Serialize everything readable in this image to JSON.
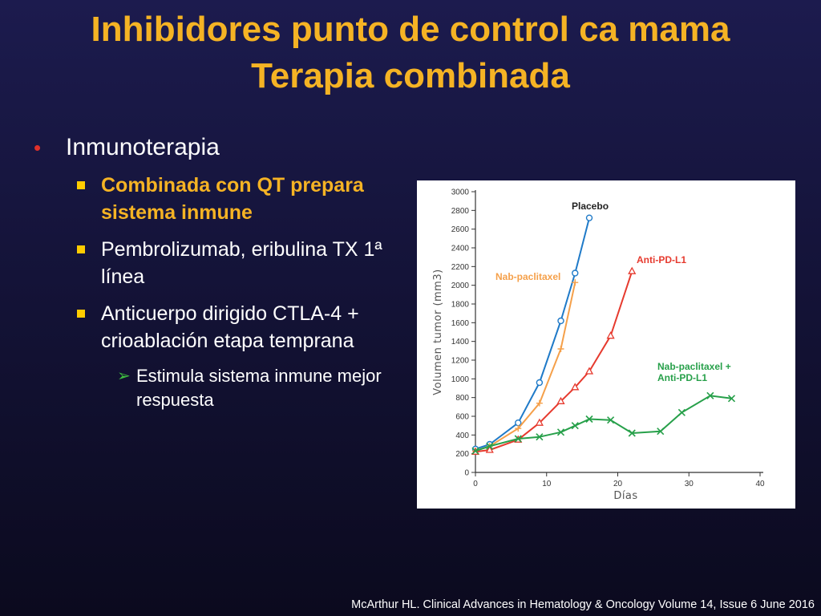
{
  "slide": {
    "title_line1": "Inhibidores punto de control ca mama",
    "title_line2": "Terapia combinada",
    "bullet1": "Inmunoterapia",
    "sub1": "Combinada con QT prepara sistema inmune",
    "sub2": "Pembrolizumab,  eribulina TX 1ª línea",
    "sub3": "Anticuerpo dirigido CTLA-4 + crioablación etapa temprana",
    "subsub1": "Estimula sistema inmune mejor respuesta",
    "citation": "McArthur HL. Clinical Advances in Hematology & Oncology Volume 14, Issue 6 June 2016",
    "colors": {
      "title": "#f5b324",
      "bullet_dot": "#e0302a",
      "square_bullet": "#ffcc00",
      "arrow_bullet": "#3fbf3f"
    },
    "icons": {
      "level1": "round-bullet-icon",
      "level2": "square-bullet-icon",
      "level3": "arrow-bullet-icon"
    }
  },
  "chart_data": {
    "type": "line",
    "xlabel": "Días",
    "ylabel": "Volumen tumor (mm3)",
    "xlim": [
      0,
      40
    ],
    "ylim": [
      0,
      3000
    ],
    "xticks": [
      0,
      10,
      20,
      30,
      40
    ],
    "yticks": [
      0,
      200,
      400,
      600,
      800,
      1000,
      1200,
      1400,
      1600,
      1800,
      2000,
      2200,
      2400,
      2600,
      2800,
      3000
    ],
    "grid": false,
    "series": [
      {
        "name": "Placebo",
        "label_lines": [
          "Placebo"
        ],
        "color": "#1f7ac8",
        "marker": "circle",
        "x": [
          0,
          2,
          6,
          9,
          12,
          14,
          16
        ],
        "y": [
          250,
          300,
          530,
          960,
          1620,
          2130,
          2720
        ]
      },
      {
        "name": "Nab-paclitaxel",
        "label_lines": [
          "Nab-paclitaxel"
        ],
        "color": "#f5a04a",
        "marker": "plus",
        "x": [
          0,
          2,
          6,
          9,
          12,
          14
        ],
        "y": [
          230,
          280,
          470,
          740,
          1320,
          2030
        ]
      },
      {
        "name": "Anti-PD-L1",
        "label_lines": [
          "Anti-PD-L1"
        ],
        "color": "#e63a2e",
        "marker": "triangle",
        "x": [
          0,
          2,
          6,
          9,
          12,
          14,
          16,
          19,
          22
        ],
        "y": [
          220,
          240,
          350,
          530,
          760,
          910,
          1080,
          1460,
          2150
        ]
      },
      {
        "name": "Nab-paclitaxel + Anti-PD-L1",
        "label_lines": [
          "Nab-paclitaxel +",
          "Anti-PD-L1"
        ],
        "color": "#27a04a",
        "marker": "x",
        "x": [
          0,
          2,
          6,
          9,
          12,
          14,
          16,
          19,
          22,
          26,
          29,
          33,
          36
        ],
        "y": [
          230,
          280,
          360,
          380,
          430,
          500,
          570,
          560,
          420,
          440,
          640,
          820,
          790
        ]
      }
    ]
  }
}
